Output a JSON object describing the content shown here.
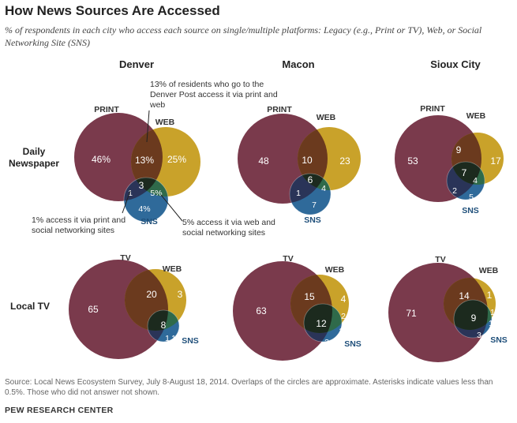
{
  "header": {
    "title": "How News Sources Are Accessed",
    "subtitle": "% of respondents in each city who access each source on single/multiple platforms: Legacy (e.g., Print or TV), Web, or Social Networking Site (SNS)"
  },
  "cities": [
    "Denver",
    "Macon",
    "Sioux City"
  ],
  "rows": {
    "newspaper": "Daily Newspaper",
    "tv": "Local TV"
  },
  "annotations": {
    "top": "13% of residents who go to the Denver Post access it via print and web",
    "left": "1% access it via print and social networking sites",
    "right": "5% access it via web and social networking sites"
  },
  "footer": {
    "source": "Source: Local News Ecosystem Survey, July 8-August 18, 2014. Overlaps of the circles are approximate. Asterisks indicate values less than 0.5%. Those who did not answer not shown.",
    "credit": "PEW RESEARCH CENTER"
  },
  "colors": {
    "legacy": "#7a3a4c",
    "web": "#c9a22a",
    "sns": "#2f6a9a",
    "overlap_legacy_web": "#6b3a1e",
    "all_three": "#1c2a1e",
    "web_sns": "#2f6a4a",
    "legacy_sns": "#2a3458"
  },
  "chart_data": [
    {
      "type": "venn",
      "city": "Denver",
      "row": "Daily Newspaper",
      "set_labels": [
        "PRINT",
        "WEB",
        "SNS"
      ],
      "values": {
        "legacy_only": "46%",
        "web_only": "25%",
        "legacy_web": "13%",
        "all_three": "3",
        "legacy_sns": "1",
        "web_sns": "5%",
        "sns_only": "4%"
      }
    },
    {
      "type": "venn",
      "city": "Macon",
      "row": "Daily Newspaper",
      "set_labels": [
        "PRINT",
        "WEB",
        "SNS"
      ],
      "values": {
        "legacy_only": "48",
        "web_only": "23",
        "legacy_web": "10",
        "all_three": "6",
        "legacy_sns": "1",
        "web_sns": "4",
        "sns_only": "7"
      }
    },
    {
      "type": "venn",
      "city": "Sioux City",
      "row": "Daily Newspaper",
      "set_labels": [
        "PRINT",
        "WEB",
        "SNS"
      ],
      "values": {
        "legacy_only": "53",
        "web_only": "17",
        "legacy_web": "9",
        "all_three": "7",
        "legacy_sns": "2",
        "web_sns": "4",
        "sns_only": "5"
      }
    },
    {
      "type": "venn",
      "city": "Denver",
      "row": "Local TV",
      "set_labels": [
        "TV",
        "WEB",
        "SNS"
      ],
      "values": {
        "legacy_only": "65",
        "web_only": "3",
        "legacy_web": "20",
        "all_three": "8",
        "legacy_sns": "1",
        "web_sns": "*",
        "sns_only": "1"
      }
    },
    {
      "type": "venn",
      "city": "Macon",
      "row": "Local TV",
      "set_labels": [
        "TV",
        "WEB",
        "SNS"
      ],
      "values": {
        "legacy_only": "63",
        "web_only": "4",
        "legacy_web": "15",
        "all_three": "12",
        "legacy_sns": "3",
        "web_sns": "2",
        "sns_only": "1"
      }
    },
    {
      "type": "venn",
      "city": "Sioux City",
      "row": "Local TV",
      "set_labels": [
        "TV",
        "WEB",
        "SNS"
      ],
      "values": {
        "legacy_only": "71",
        "web_only": "1",
        "legacy_web": "14",
        "all_three": "9",
        "legacy_sns": "3",
        "web_sns": "1",
        "sns_only": "1"
      }
    }
  ]
}
